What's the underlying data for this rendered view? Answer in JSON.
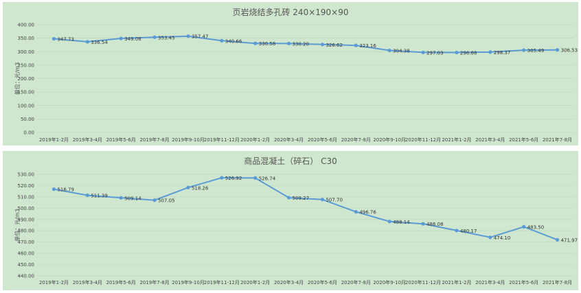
{
  "chart_data": [
    {
      "type": "line",
      "title": "页岩烧结多孔砖 240×190×90",
      "ylabel": "单位：元/m3",
      "categories": [
        "2019年1-2月",
        "2019年3-4月",
        "2019年5-6月",
        "2019年7-8月",
        "2019年9-10月",
        "2019年11-12月",
        "2020年1-2月",
        "2020年3-4月",
        "2020年5-6月",
        "2020年7-8月",
        "2020年9-10月",
        "2020年11-12月",
        "2021年1-2月",
        "2021年3-4月",
        "2021年5-6月",
        "2021年7-8月"
      ],
      "values": [
        347.73,
        336.54,
        349.08,
        353.45,
        357.47,
        340.66,
        330.58,
        330.2,
        326.62,
        323.16,
        304.38,
        297.03,
        296.88,
        298.37,
        305.49,
        306.53
      ],
      "value_labels": [
        "347.73",
        "336.54",
        "349.08",
        "353.45",
        "357.47",
        "340.66",
        "330.58",
        "330.20",
        "326.62",
        "323.16",
        "304.38",
        "297.03",
        "296.88",
        "298.37",
        "305.49",
        "306.53"
      ],
      "ylim": [
        0,
        400
      ],
      "yticks": [
        "0.00",
        "50.00",
        "100.00",
        "150.00",
        "200.00",
        "250.00",
        "300.00",
        "350.00",
        "400.00"
      ],
      "grid": true,
      "color": "#5b9bd5"
    },
    {
      "type": "line",
      "title": "商品混凝土（碎石） C30",
      "ylabel": "单位：元/m3",
      "categories": [
        "2019年1-2月",
        "2019年3-4月",
        "2019年5-6月",
        "2019年7-8月",
        "2019年9-10月",
        "2019年11-12月",
        "2020年1-2月",
        "2020年3-4月",
        "2020年5-6月",
        "2020年7-8月",
        "2020年9-10月",
        "2020年11-12月",
        "2021年1-2月",
        "2021年3-4月",
        "2021年5-6月",
        "2021年7-8月"
      ],
      "values": [
        516.79,
        511.39,
        509.14,
        507.05,
        518.26,
        526.92,
        526.74,
        509.27,
        507.7,
        496.76,
        488.14,
        486.08,
        480.17,
        474.1,
        483.5,
        471.97
      ],
      "value_labels": [
        "516.79",
        "511.39",
        "509.14",
        "507.05",
        "518.26",
        "526.92",
        "526.74",
        "509.27",
        "507.70",
        "496.76",
        "488.14",
        "486.08",
        "480.17",
        "474.10",
        "483.50",
        "471.97"
      ],
      "ylim": [
        440,
        530
      ],
      "yticks": [
        "440.00",
        "450.00",
        "460.00",
        "470.00",
        "480.00",
        "490.00",
        "500.00",
        "510.00",
        "520.00",
        "530.00"
      ],
      "grid": true,
      "color": "#5b9bd5"
    }
  ]
}
